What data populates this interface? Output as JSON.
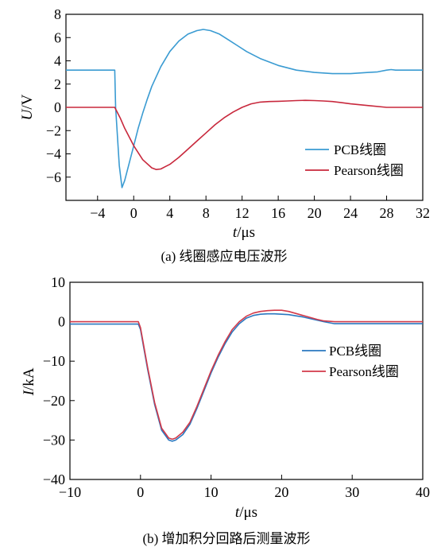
{
  "chart_data": [
    {
      "type": "line",
      "caption": "(a)  线圈感应电压波形",
      "xlabel_italic": "t",
      "xlabel_unit": "/μs",
      "ylabel_italic": "U",
      "ylabel_unit": "/V",
      "xlim": [
        -7.5,
        32
      ],
      "ylim": [
        -8,
        8
      ],
      "xticks": [
        -4,
        0,
        4,
        8,
        12,
        16,
        20,
        24,
        28,
        32
      ],
      "yticks": [
        8,
        6,
        4,
        2,
        0,
        -2,
        -4,
        -6
      ],
      "ytick_labels": [
        "8",
        "6",
        "4",
        "2",
        "0",
        "−2",
        "−4",
        "−6"
      ],
      "xtick_labels": [
        "−4",
        "0",
        "4",
        "8",
        "12",
        "16",
        "20",
        "24",
        "28",
        "32"
      ],
      "legend_position": "right",
      "series": [
        {
          "name": "PCB线圈",
          "color": "#3a9bd2",
          "x": [
            -7.5,
            -2.1,
            -2.0,
            -1.6,
            -1.3,
            -1.0,
            -0.5,
            0.0,
            0.5,
            1.0,
            1.5,
            2.0,
            3.0,
            4.0,
            5.0,
            6.0,
            7.0,
            7.7,
            8.5,
            9.5,
            10.5,
            11.5,
            12.5,
            14.0,
            16.0,
            18.0,
            20.0,
            22.0,
            23.0,
            24.0,
            26.0,
            27.0,
            28.0,
            28.5,
            29.0,
            30.0,
            31.0,
            32.0
          ],
          "y": [
            3.2,
            3.2,
            0.0,
            -5.0,
            -6.9,
            -6.3,
            -4.8,
            -3.3,
            -1.8,
            -0.5,
            0.7,
            1.8,
            3.5,
            4.8,
            5.7,
            6.3,
            6.6,
            6.7,
            6.6,
            6.3,
            5.8,
            5.3,
            4.8,
            4.2,
            3.6,
            3.2,
            3.0,
            2.9,
            2.9,
            2.9,
            3.0,
            3.05,
            3.2,
            3.25,
            3.2,
            3.2,
            3.2,
            3.2
          ]
        },
        {
          "name": "Pearson线圈",
          "color": "#c8283c",
          "x": [
            -7.5,
            -2.1,
            -1.5,
            -1.0,
            0.0,
            1.0,
            2.0,
            2.5,
            3.0,
            3.5,
            4.0,
            5.0,
            6.0,
            7.0,
            8.0,
            9.0,
            10.0,
            11.0,
            12.0,
            13.0,
            14.0,
            15.0,
            16.0,
            17.0,
            18.0,
            19.0,
            20.0,
            21.0,
            22.0,
            23.0,
            24.0,
            26.0,
            28.0,
            32.0
          ],
          "y": [
            0.0,
            0.0,
            -0.9,
            -1.8,
            -3.3,
            -4.5,
            -5.2,
            -5.35,
            -5.3,
            -5.1,
            -4.9,
            -4.3,
            -3.6,
            -2.9,
            -2.2,
            -1.5,
            -0.9,
            -0.4,
            0.0,
            0.3,
            0.45,
            0.5,
            0.52,
            0.55,
            0.58,
            0.6,
            0.58,
            0.55,
            0.5,
            0.4,
            0.3,
            0.15,
            0.0,
            0.0
          ]
        }
      ]
    },
    {
      "type": "line",
      "caption": "(b)  增加积分回路后测量波形",
      "xlabel_italic": "t",
      "xlabel_unit": "/μs",
      "ylabel_italic": "I",
      "ylabel_unit": "/kA",
      "xlim": [
        -10,
        40
      ],
      "ylim": [
        -40,
        10
      ],
      "xticks": [
        -10,
        0,
        10,
        20,
        30,
        40
      ],
      "xtick_labels": [
        "−10",
        "0",
        "10",
        "20",
        "30",
        "40"
      ],
      "yticks": [
        10,
        0,
        -10,
        -20,
        -30,
        -40
      ],
      "ytick_labels": [
        "10",
        "0",
        "−10",
        "−20",
        "−30",
        "−40"
      ],
      "legend_position": "right",
      "series": [
        {
          "name": "PCB线圈",
          "color": "#2a78c0",
          "x": [
            -10,
            -0.3,
            0.0,
            1.0,
            2.0,
            3.0,
            4.0,
            4.5,
            5.0,
            6.0,
            7.0,
            8.0,
            9.0,
            10.0,
            11.0,
            12.0,
            13.0,
            14.0,
            15.0,
            16.0,
            17.0,
            18.0,
            19.0,
            20.0,
            21.0,
            22.0,
            23.0,
            24.0,
            25.0,
            26.0,
            27.5,
            30.0,
            35.0,
            40.0
          ],
          "y": [
            -0.6,
            -0.6,
            -2.0,
            -12.0,
            -21.0,
            -27.5,
            -30.0,
            -30.3,
            -30.0,
            -28.6,
            -26.0,
            -22.0,
            -17.5,
            -13.0,
            -9.0,
            -5.5,
            -2.6,
            -0.5,
            0.9,
            1.6,
            1.9,
            2.0,
            2.0,
            1.9,
            1.8,
            1.5,
            1.2,
            0.8,
            0.4,
            0.0,
            -0.5,
            -0.5,
            -0.5,
            -0.5
          ]
        },
        {
          "name": "Pearson线圈",
          "color": "#d23a4a",
          "x": [
            -10,
            -0.3,
            0.0,
            1.0,
            2.0,
            3.0,
            4.0,
            4.5,
            5.0,
            6.0,
            7.0,
            8.0,
            9.0,
            10.0,
            11.0,
            12.0,
            13.0,
            14.0,
            15.0,
            16.0,
            17.0,
            18.0,
            19.0,
            20.0,
            21.0,
            22.0,
            23.0,
            24.0,
            25.0,
            26.0,
            27.5,
            30.0,
            35.0,
            40.0
          ],
          "y": [
            0.0,
            0.0,
            -1.5,
            -11.5,
            -20.5,
            -27.0,
            -29.5,
            -29.8,
            -29.5,
            -28.0,
            -25.5,
            -21.5,
            -17.0,
            -12.5,
            -8.5,
            -5.0,
            -2.0,
            0.0,
            1.4,
            2.2,
            2.6,
            2.8,
            2.9,
            2.9,
            2.6,
            2.1,
            1.6,
            1.1,
            0.6,
            0.2,
            0.0,
            0.0,
            0.0,
            0.0
          ]
        }
      ]
    }
  ]
}
